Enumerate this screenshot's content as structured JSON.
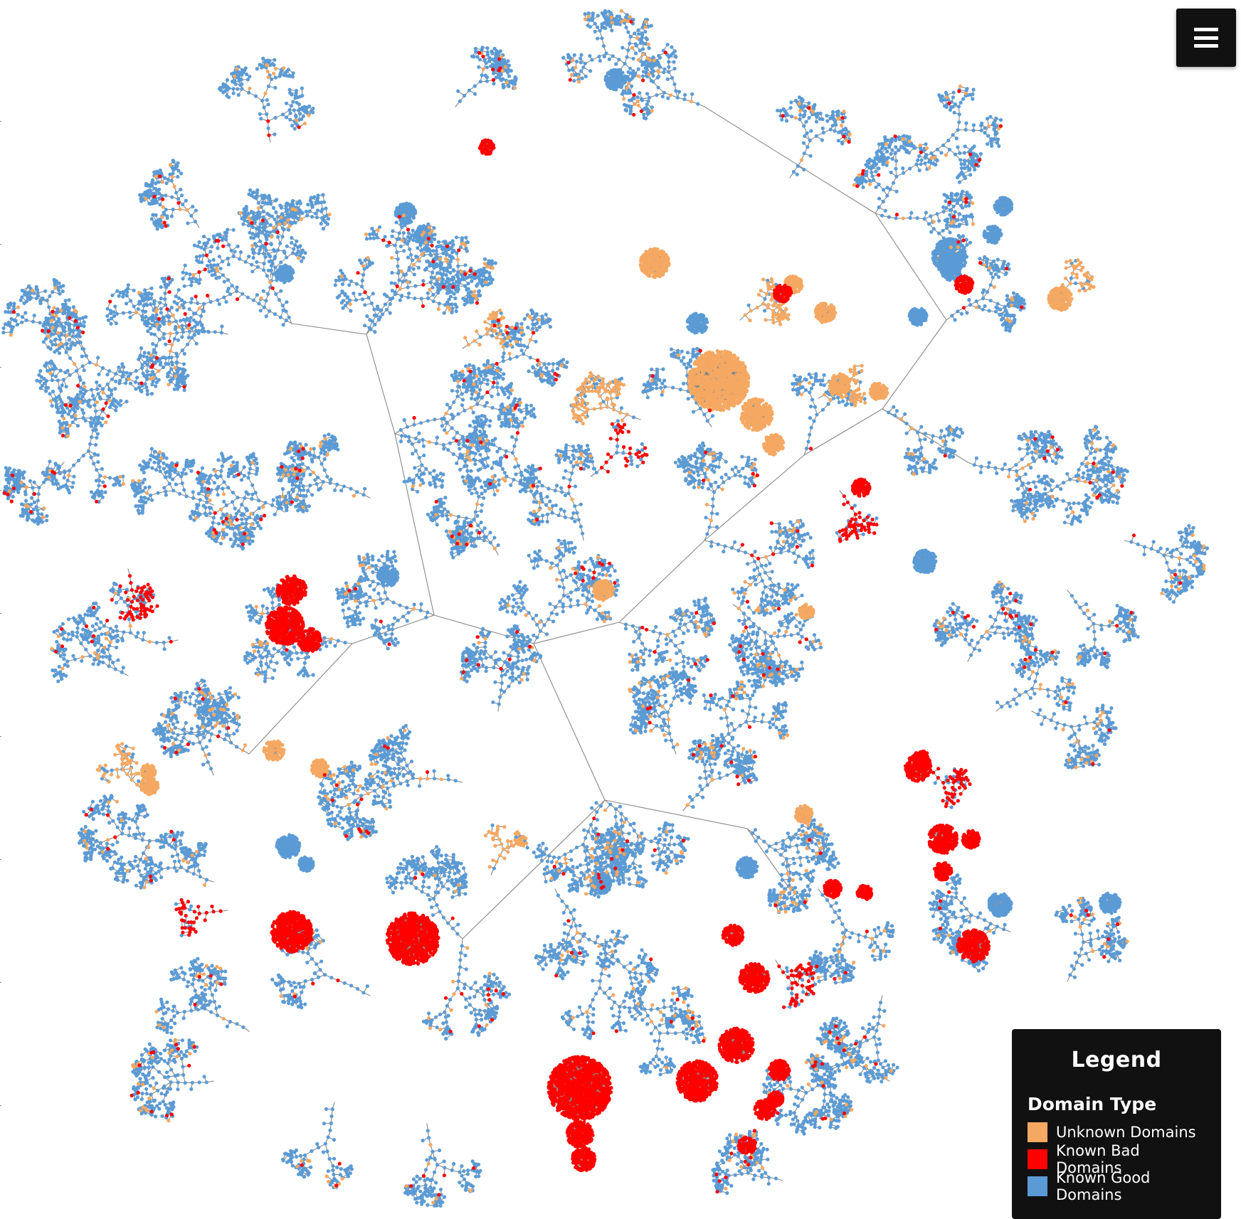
{
  "legend": {
    "title": "Legend",
    "subtitle": "Domain Type",
    "items": [
      {
        "key": "unknown",
        "label": "Unknown Domains",
        "color": "#f5a862"
      },
      {
        "key": "bad",
        "label": "Known Bad Domains",
        "color": "#ff0000"
      },
      {
        "key": "good",
        "label": "Known Good Domains",
        "color": "#5b9bd5"
      }
    ]
  },
  "menu": {
    "icon": "hamburger-menu-icon"
  },
  "graph": {
    "edge_color": "#888888",
    "cluster_color": "#999999"
  }
}
